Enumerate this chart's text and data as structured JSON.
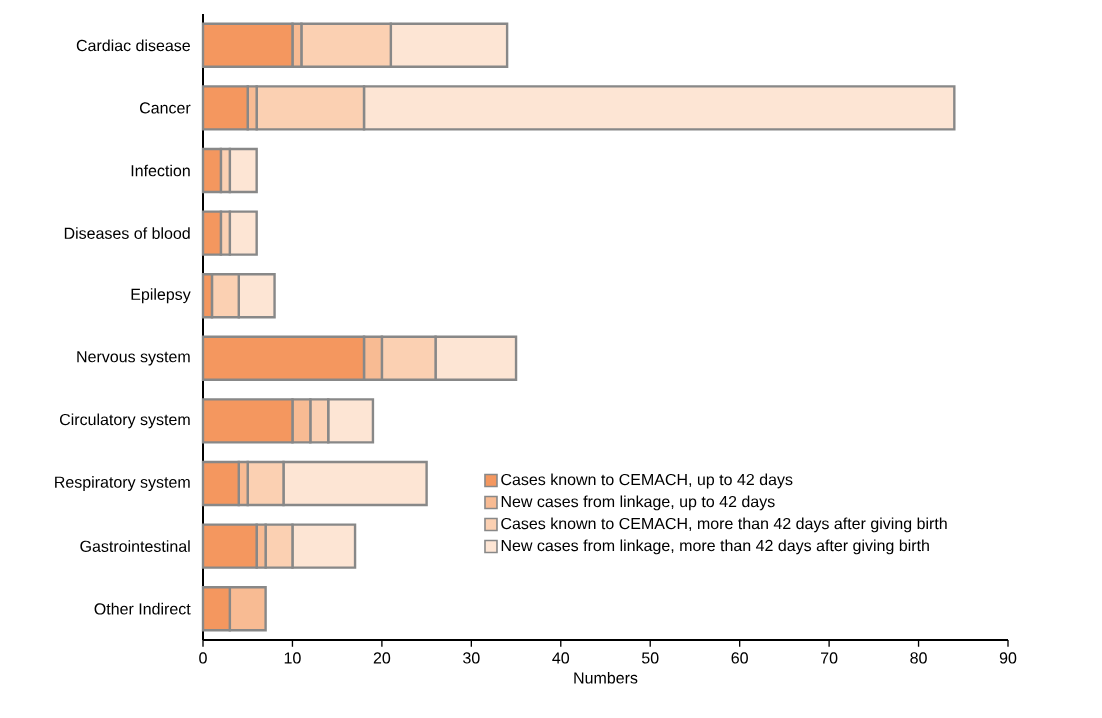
{
  "chart_data": {
    "type": "bar",
    "orientation": "horizontal",
    "stacked": true,
    "xlabel": "Numbers",
    "categories": [
      "Cardiac disease",
      "Cancer",
      "Infection",
      "Diseases of blood",
      "Epilepsy",
      "Nervous system",
      "Circulatory system",
      "Respiratory system",
      "Gastrointestinal",
      "Other Indirect"
    ],
    "series": [
      {
        "name": "Cases known to CEMACH, up to 42 days",
        "color": "#f4975f",
        "values": [
          10,
          5,
          2,
          2,
          1,
          18,
          10,
          4,
          6,
          3
        ]
      },
      {
        "name": "New cases from linkage, up to 42 days",
        "color": "#f8bb93",
        "values": [
          1,
          1,
          0,
          0,
          0,
          2,
          2,
          1,
          1,
          4
        ]
      },
      {
        "name": "Cases known to CEMACH, more than 42 days after giving birth",
        "color": "#fbd0b2",
        "values": [
          10,
          12,
          1,
          1,
          3,
          6,
          2,
          4,
          3,
          0
        ]
      },
      {
        "name": "New cases from linkage, more than 42 days after giving birth",
        "color": "#fde5d4",
        "values": [
          13,
          66,
          3,
          3,
          4,
          9,
          5,
          16,
          7,
          0
        ]
      }
    ],
    "xlim": [
      0,
      90
    ],
    "xticks": [
      0,
      10,
      20,
      30,
      40,
      50,
      60,
      70,
      80,
      90
    ],
    "grid": false,
    "legend": "bottom right"
  }
}
